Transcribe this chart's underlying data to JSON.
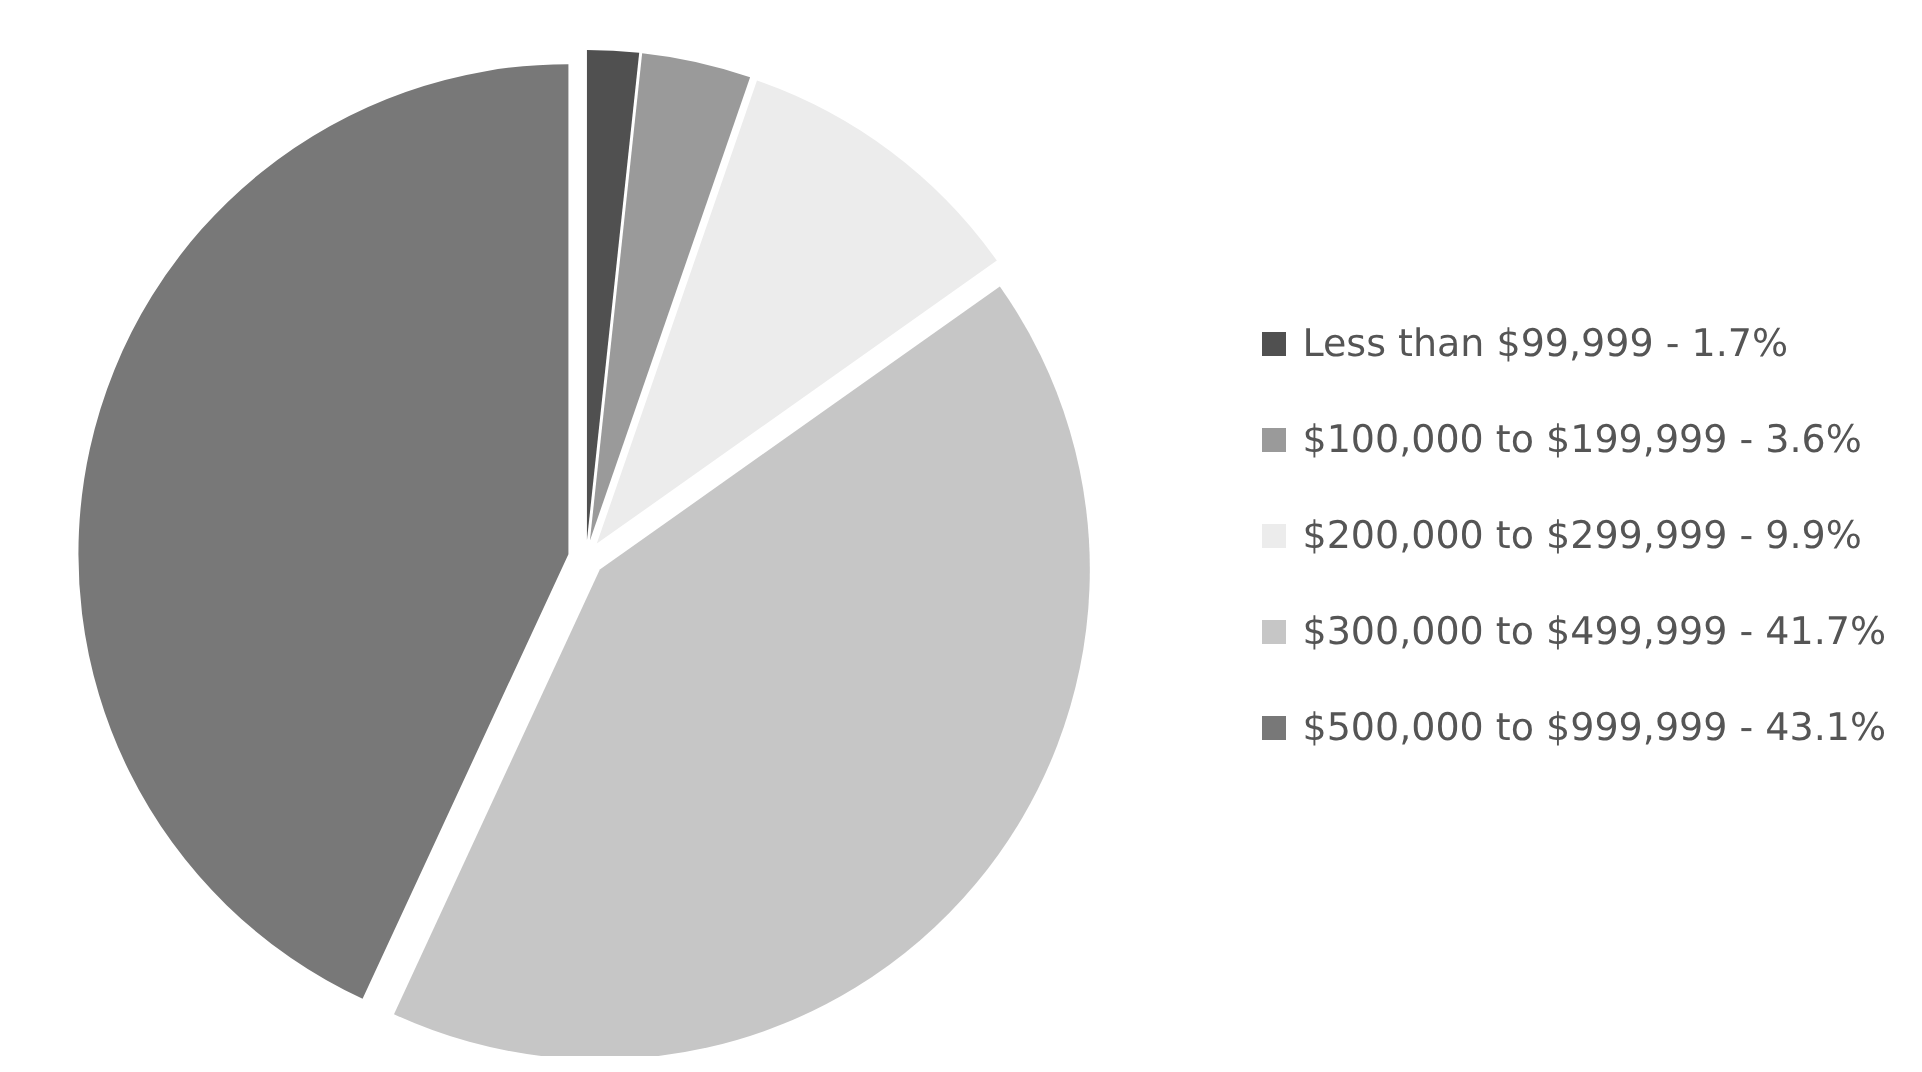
{
  "chart_data": {
    "type": "pie",
    "categories": [
      "Less than $99,999 - 1.7%",
      "$100,000 to $199,999 - 3.6%",
      "$200,000 to $299,999 - 9.9%",
      "$300,000 to $499,999 - 41.7%",
      "$500,000 to $999,999 - 43.1%"
    ],
    "values": [
      1.7,
      3.6,
      9.9,
      41.7,
      43.1
    ],
    "colors": [
      "#505050",
      "#9a9a9a",
      "#ececec",
      "#c6c6c6",
      "#787878"
    ],
    "legend": "right"
  }
}
